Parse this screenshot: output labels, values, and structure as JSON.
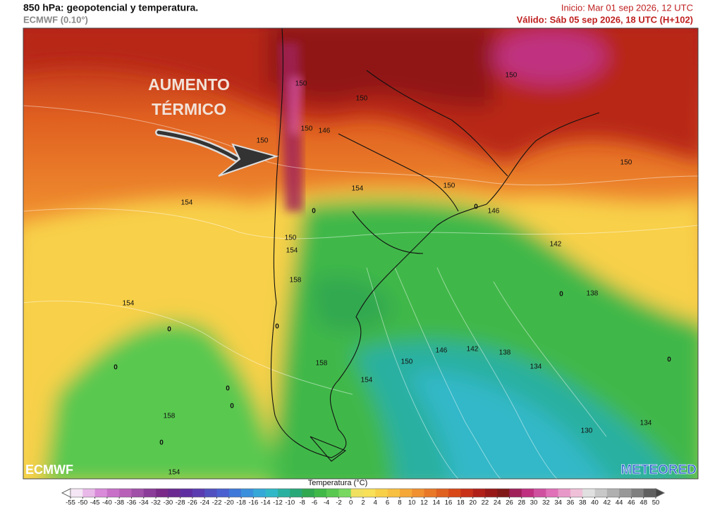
{
  "header": {
    "title": "850 hPa: geopotencial y temperatura.",
    "model": "ECMWF (0.10°)",
    "init": "Inicio: Mar 01 sep 2026, 12 UTC",
    "valid": "Válido: Sáb 05 sep 2026, 18 UTC (H+102)"
  },
  "annotation": {
    "lines": [
      "AUMENTO",
      "TÉRMICO"
    ]
  },
  "contour_labels": [
    150,
    150,
    150,
    150,
    146,
    150,
    150,
    150,
    154,
    154,
    146,
    0,
    0,
    142,
    150,
    154,
    158,
    138,
    0,
    154,
    0,
    0,
    146,
    142,
    138,
    150,
    158,
    134,
    0,
    0,
    0,
    154,
    158,
    0,
    130,
    134,
    0,
    154
  ],
  "logos": {
    "left": "ECMWF",
    "right": "METEORED"
  },
  "colorbar": {
    "title": "Temperatura (°C)",
    "ticks": [
      -55,
      -50,
      -45,
      -40,
      -38,
      -36,
      -34,
      -32,
      -30,
      -28,
      -26,
      -24,
      -22,
      -20,
      -18,
      -16,
      -14,
      -12,
      -10,
      -8,
      -6,
      -4,
      -2,
      0,
      2,
      4,
      6,
      8,
      10,
      12,
      14,
      16,
      18,
      20,
      22,
      24,
      26,
      28,
      30,
      32,
      34,
      36,
      38,
      40,
      42,
      44,
      46,
      48,
      50
    ],
    "colors": [
      "#f5e6f5",
      "#e8b8e8",
      "#d98ad9",
      "#c870c8",
      "#b860b8",
      "#a050a8",
      "#8a3c98",
      "#7a2a88",
      "#6a2a90",
      "#5e2ea0",
      "#5a3cb0",
      "#5050c0",
      "#4a60d0",
      "#3e78d8",
      "#3a90dc",
      "#36a8d8",
      "#30b8c8",
      "#2ab0a0",
      "#28a878",
      "#30a850",
      "#40b848",
      "#58c850",
      "#78d860",
      "#f0e060",
      "#f8e058",
      "#f8d048",
      "#f8c040",
      "#f5a838",
      "#f09030",
      "#e87828",
      "#e06020",
      "#d84818",
      "#c83018",
      "#b02018",
      "#981818",
      "#801818",
      "#a0205a",
      "#c03080",
      "#d050a0",
      "#e070b8",
      "#e898c8",
      "#f0c0d8",
      "#e0e0e0",
      "#c8c8c8",
      "#b0b0b0",
      "#989898",
      "#808080",
      "#606060"
    ]
  }
}
